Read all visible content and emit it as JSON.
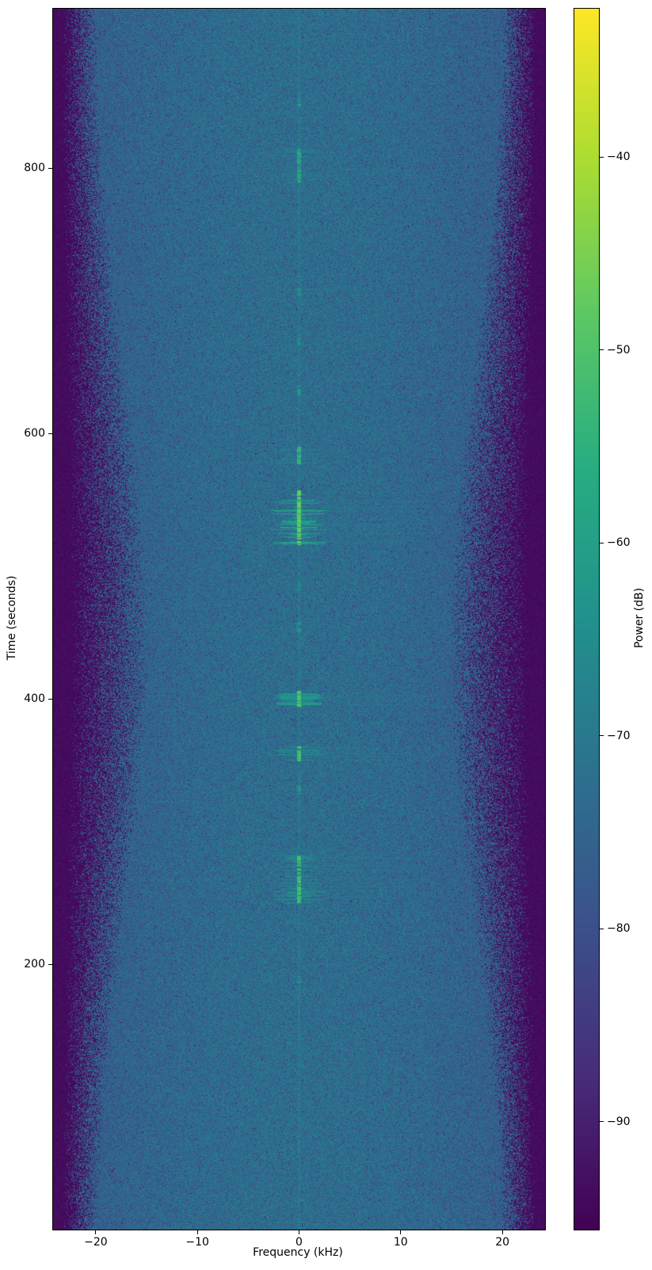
{
  "figure": {
    "background_color": "#ffffff",
    "text_color": "#000000"
  },
  "chart_data": {
    "type": "heatmap",
    "title": "",
    "xlabel": "Frequency (kHz)",
    "ylabel": "Time (seconds)",
    "colorbar_label": "Power (dB)",
    "xlim": [
      -24.2,
      24.2
    ],
    "ylim": [
      0,
      920
    ],
    "clim": [
      -95.6,
      -32.3
    ],
    "x_ticks": [
      -20,
      -10,
      0,
      10,
      20
    ],
    "x_tick_labels": [
      "−20",
      "−10",
      "0",
      "10",
      "20"
    ],
    "y_ticks": [
      200,
      400,
      600,
      800
    ],
    "y_tick_labels": [
      "200",
      "400",
      "600",
      "800"
    ],
    "colorbar_ticks": [
      -40,
      -50,
      -60,
      -70,
      -80,
      -90
    ],
    "colorbar_tick_labels": [
      "−40",
      "−50",
      "−60",
      "−70",
      "−80",
      "−90"
    ],
    "grid": false,
    "legend": false,
    "colormap": "viridis",
    "colormap_stops": [
      "#440154",
      "#472c7a",
      "#3b518b",
      "#2c718e",
      "#21918c",
      "#27ad81",
      "#5cc863",
      "#aadc32",
      "#fde725"
    ],
    "background_power_db": -73,
    "noise_floor_db": -93.5,
    "noise_std_db": 3.5,
    "passband_halfwidth_khz": {
      "top": 21.8,
      "middle": 18.6,
      "bottom": 21.8
    },
    "edge_transition_khz": {
      "top": 1.5,
      "middle": 3.8,
      "bottom": 1.5
    },
    "dc_line": {
      "freq_khz": 0,
      "level_db": -71
    },
    "bursts": [
      {
        "t_start": 846,
        "t_end": 852,
        "freq_khz": 0,
        "peak_db": -62
      },
      {
        "t_start": 788,
        "t_end": 815,
        "freq_khz": 0,
        "peak_db": -58
      },
      {
        "t_start": 704,
        "t_end": 710,
        "freq_khz": 0,
        "peak_db": -66
      },
      {
        "t_start": 666,
        "t_end": 673,
        "freq_khz": 0,
        "peak_db": -66
      },
      {
        "t_start": 628,
        "t_end": 636,
        "freq_khz": 0,
        "peak_db": -63
      },
      {
        "t_start": 577,
        "t_end": 590,
        "freq_khz": 0,
        "peak_db": -55
      },
      {
        "t_start": 516,
        "t_end": 557,
        "freq_khz": 0,
        "peak_db": -48
      },
      {
        "t_start": 481,
        "t_end": 488,
        "freq_khz": 0,
        "peak_db": -66
      },
      {
        "t_start": 450,
        "t_end": 458,
        "freq_khz": 0,
        "peak_db": -64
      },
      {
        "t_start": 394,
        "t_end": 406,
        "freq_khz": 0,
        "peak_db": -50
      },
      {
        "t_start": 353,
        "t_end": 364,
        "freq_khz": 0,
        "peak_db": -52
      },
      {
        "t_start": 328,
        "t_end": 335,
        "freq_khz": 0,
        "peak_db": -64
      },
      {
        "t_start": 246,
        "t_end": 282,
        "freq_khz": 0,
        "peak_db": -52
      },
      {
        "t_start": 185,
        "t_end": 193,
        "freq_khz": 0,
        "peak_db": -65
      }
    ],
    "striation_spread_khz": 2.5,
    "echo_streak_max_khz": 15
  }
}
